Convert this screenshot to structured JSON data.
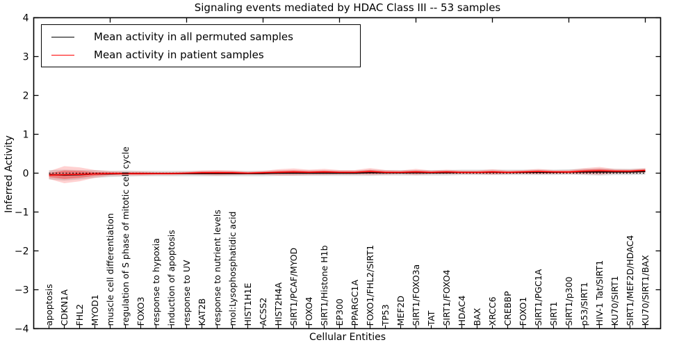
{
  "title": "Signaling events mediated by HDAC Class III -- 53 samples",
  "axes": {
    "xlabel": "Cellular Entities",
    "ylabel": "Inferred Activity"
  },
  "chart_data": {
    "type": "line",
    "title": "Signaling events mediated by HDAC Class III -- 53 samples",
    "xlabel": "Cellular Entities",
    "ylabel": "Inferred Activity",
    "ylim": [
      -4,
      4
    ],
    "yticks": [
      4,
      3,
      2,
      1,
      0,
      -1,
      -2,
      -3,
      -4
    ],
    "grid": false,
    "zero_reference_line": {
      "style": "dotted",
      "color": "#000000",
      "y": 0
    },
    "legend_position": "upper left",
    "categories": [
      "apoptosis",
      "CDKN1A",
      "FHL2",
      "MYOD1",
      "muscle cell differentiation",
      "regulation of S phase of mitotic cell cycle",
      "FOXO3",
      "response to hypoxia",
      "induction of apoptosis",
      "response to UV",
      "KAT2B",
      "response to nutrient levels",
      "mol:Lysophosphatidic acid",
      "HIST1H1E",
      "ACSS2",
      "HIST2H4A",
      "SIRT1/PCAF/MYOD",
      "FOXO4",
      "SIRT1/Histone H1b",
      "EP300",
      "PPARGC1A",
      "FOXO1/FHL2/SIRT1",
      "TP53",
      "MEF2D",
      "SIRT1/FOXO3a",
      "TAT",
      "SIRT1/FOXO4",
      "HDAC4",
      "BAX",
      "XRCC6",
      "CREBBP",
      "FOXO1",
      "SIRT1/PGC1A",
      "SIRT1",
      "SIRT1/p300",
      "p53/SIRT1",
      "HIV-1 Tat/SIRT1",
      "KU70/SIRT1",
      "SIRT1/MEF2D/HDAC4",
      "KU70/SIRT1/BAX"
    ],
    "series": [
      {
        "name": "Mean activity in all permuted samples",
        "color": "#000000",
        "band_color": "#888888",
        "band_opacity": 0.28,
        "values": [
          -0.04,
          -0.05,
          -0.04,
          -0.02,
          -0.02,
          -0.01,
          -0.01,
          -0.01,
          -0.01,
          -0.01,
          -0.01,
          -0.01,
          -0.01,
          -0.01,
          -0.01,
          0.0,
          0.0,
          0.0,
          0.0,
          0.0,
          0.0,
          0.01,
          0.01,
          0.01,
          0.01,
          0.01,
          0.01,
          0.02,
          0.02,
          0.02,
          0.02,
          0.02,
          0.02,
          0.02,
          0.03,
          0.03,
          0.03,
          0.03,
          0.03,
          0.04
        ],
        "band_halfwidth": [
          0.12,
          0.14,
          0.12,
          0.1,
          0.08,
          0.08,
          0.07,
          0.07,
          0.07,
          0.07,
          0.07,
          0.07,
          0.07,
          0.07,
          0.07,
          0.07,
          0.07,
          0.07,
          0.07,
          0.07,
          0.07,
          0.08,
          0.07,
          0.07,
          0.07,
          0.07,
          0.07,
          0.07,
          0.07,
          0.07,
          0.07,
          0.07,
          0.07,
          0.07,
          0.07,
          0.08,
          0.09,
          0.08,
          0.08,
          0.08
        ]
      },
      {
        "name": "Mean activity in patient samples",
        "color": "#ff0000",
        "band_color": "#ff0000",
        "band_opacity": 0.18,
        "values": [
          -0.05,
          -0.04,
          -0.03,
          -0.02,
          -0.01,
          -0.01,
          -0.01,
          -0.01,
          -0.01,
          0.0,
          0.01,
          0.01,
          0.01,
          0.0,
          0.01,
          0.02,
          0.03,
          0.02,
          0.03,
          0.02,
          0.02,
          0.04,
          0.02,
          0.02,
          0.03,
          0.02,
          0.03,
          0.02,
          0.02,
          0.03,
          0.02,
          0.03,
          0.04,
          0.03,
          0.03,
          0.05,
          0.06,
          0.05,
          0.05,
          0.07
        ],
        "band_halfwidth": [
          0.1,
          0.22,
          0.18,
          0.1,
          0.06,
          0.05,
          0.05,
          0.04,
          0.04,
          0.04,
          0.06,
          0.07,
          0.06,
          0.04,
          0.05,
          0.08,
          0.09,
          0.07,
          0.08,
          0.06,
          0.06,
          0.09,
          0.06,
          0.05,
          0.08,
          0.05,
          0.06,
          0.05,
          0.05,
          0.07,
          0.05,
          0.05,
          0.07,
          0.05,
          0.05,
          0.08,
          0.1,
          0.06,
          0.05,
          0.06
        ]
      }
    ]
  }
}
